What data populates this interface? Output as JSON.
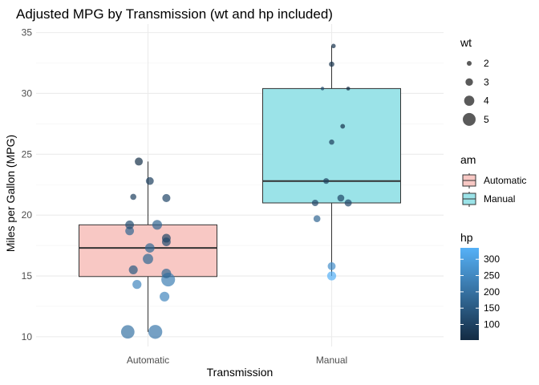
{
  "chart_data": {
    "type": "box",
    "title": "Adjusted MPG by Transmission (wt and hp included)",
    "xlabel": "Transmission",
    "ylabel": "Miles per Gallon (MPG)",
    "categories": [
      "Automatic",
      "Manual"
    ],
    "ylim": [
      9.2,
      35.7
    ],
    "yticks": [
      10,
      15,
      20,
      25,
      30,
      35
    ],
    "grid": true,
    "box_colors": {
      "Automatic": "#f8c8c4",
      "Manual": "#9be3e8"
    },
    "boxes": [
      {
        "category": "Automatic",
        "min": 10.4,
        "q1": 14.95,
        "median": 17.3,
        "q3": 19.2,
        "max": 24.4
      },
      {
        "category": "Manual",
        "min": 15.0,
        "q1": 21.0,
        "median": 22.8,
        "q3": 30.4,
        "max": 33.9
      }
    ],
    "points": [
      {
        "category": "Automatic",
        "dx": -0.11,
        "mpg": 10.4,
        "wt": 5.25,
        "hp": 205
      },
      {
        "category": "Automatic",
        "dx": 0.04,
        "mpg": 10.4,
        "wt": 5.42,
        "hp": 215
      },
      {
        "category": "Automatic",
        "dx": -0.06,
        "mpg": 14.3,
        "wt": 3.57,
        "hp": 245
      },
      {
        "category": "Automatic",
        "dx": 0.11,
        "mpg": 14.7,
        "wt": 5.35,
        "hp": 230
      },
      {
        "category": "Automatic",
        "dx": 0.1,
        "mpg": 15.2,
        "wt": 3.78,
        "hp": 180
      },
      {
        "category": "Automatic",
        "dx": -0.08,
        "mpg": 15.5,
        "wt": 3.52,
        "hp": 150
      },
      {
        "category": "Automatic",
        "dx": 0.09,
        "mpg": 13.3,
        "wt": 3.84,
        "hp": 245
      },
      {
        "category": "Automatic",
        "dx": 0.0,
        "mpg": 16.4,
        "wt": 4.07,
        "hp": 180
      },
      {
        "category": "Automatic",
        "dx": 0.01,
        "mpg": 17.3,
        "wt": 3.73,
        "hp": 180
      },
      {
        "category": "Automatic",
        "dx": 0.1,
        "mpg": 17.8,
        "wt": 3.44,
        "hp": 123
      },
      {
        "category": "Automatic",
        "dx": 0.1,
        "mpg": 18.1,
        "wt": 3.46,
        "hp": 105
      },
      {
        "category": "Automatic",
        "dx": -0.1,
        "mpg": 18.7,
        "wt": 3.44,
        "hp": 175
      },
      {
        "category": "Automatic",
        "dx": -0.1,
        "mpg": 19.2,
        "wt": 3.44,
        "hp": 123
      },
      {
        "category": "Automatic",
        "dx": 0.05,
        "mpg": 19.2,
        "wt": 3.85,
        "hp": 175
      },
      {
        "category": "Automatic",
        "dx": 0.1,
        "mpg": 21.4,
        "wt": 3.22,
        "hp": 110
      },
      {
        "category": "Automatic",
        "dx": -0.08,
        "mpg": 21.5,
        "wt": 2.47,
        "hp": 97
      },
      {
        "category": "Automatic",
        "dx": 0.01,
        "mpg": 22.8,
        "wt": 3.15,
        "hp": 95
      },
      {
        "category": "Automatic",
        "dx": -0.05,
        "mpg": 24.4,
        "wt": 3.19,
        "hp": 62
      },
      {
        "category": "Manual",
        "dx": 0.0,
        "mpg": 15.0,
        "wt": 3.57,
        "hp": 335
      },
      {
        "category": "Manual",
        "dx": 0.0,
        "mpg": 15.8,
        "wt": 3.17,
        "hp": 264
      },
      {
        "category": "Manual",
        "dx": -0.08,
        "mpg": 19.7,
        "wt": 2.77,
        "hp": 175
      },
      {
        "category": "Manual",
        "dx": -0.09,
        "mpg": 21.0,
        "wt": 2.62,
        "hp": 110
      },
      {
        "category": "Manual",
        "dx": 0.05,
        "mpg": 21.4,
        "wt": 2.78,
        "hp": 109
      },
      {
        "category": "Manual",
        "dx": 0.09,
        "mpg": 21.0,
        "wt": 2.88,
        "hp": 110
      },
      {
        "category": "Manual",
        "dx": -0.03,
        "mpg": 22.8,
        "wt": 2.32,
        "hp": 93
      },
      {
        "category": "Manual",
        "dx": 0.0,
        "mpg": 26.0,
        "wt": 2.14,
        "hp": 91
      },
      {
        "category": "Manual",
        "dx": 0.06,
        "mpg": 27.3,
        "wt": 1.94,
        "hp": 66
      },
      {
        "category": "Manual",
        "dx": -0.05,
        "mpg": 30.4,
        "wt": 1.51,
        "hp": 113
      },
      {
        "category": "Manual",
        "dx": 0.09,
        "mpg": 30.4,
        "wt": 1.62,
        "hp": 52
      },
      {
        "category": "Manual",
        "dx": 0.0,
        "mpg": 32.4,
        "wt": 2.2,
        "hp": 66
      },
      {
        "category": "Manual",
        "dx": 0.01,
        "mpg": 33.9,
        "wt": 1.84,
        "hp": 65
      }
    ],
    "legend_wt": {
      "title": "wt",
      "values": [
        2,
        3,
        4,
        5
      ]
    },
    "legend_am": {
      "title": "am",
      "entries": [
        "Automatic",
        "Manual"
      ]
    },
    "legend_hp": {
      "title": "hp",
      "ticks": [
        100,
        150,
        200,
        250,
        300
      ],
      "range": [
        52,
        335
      ],
      "low_color": "#132b43",
      "high_color": "#56b1f7"
    }
  }
}
